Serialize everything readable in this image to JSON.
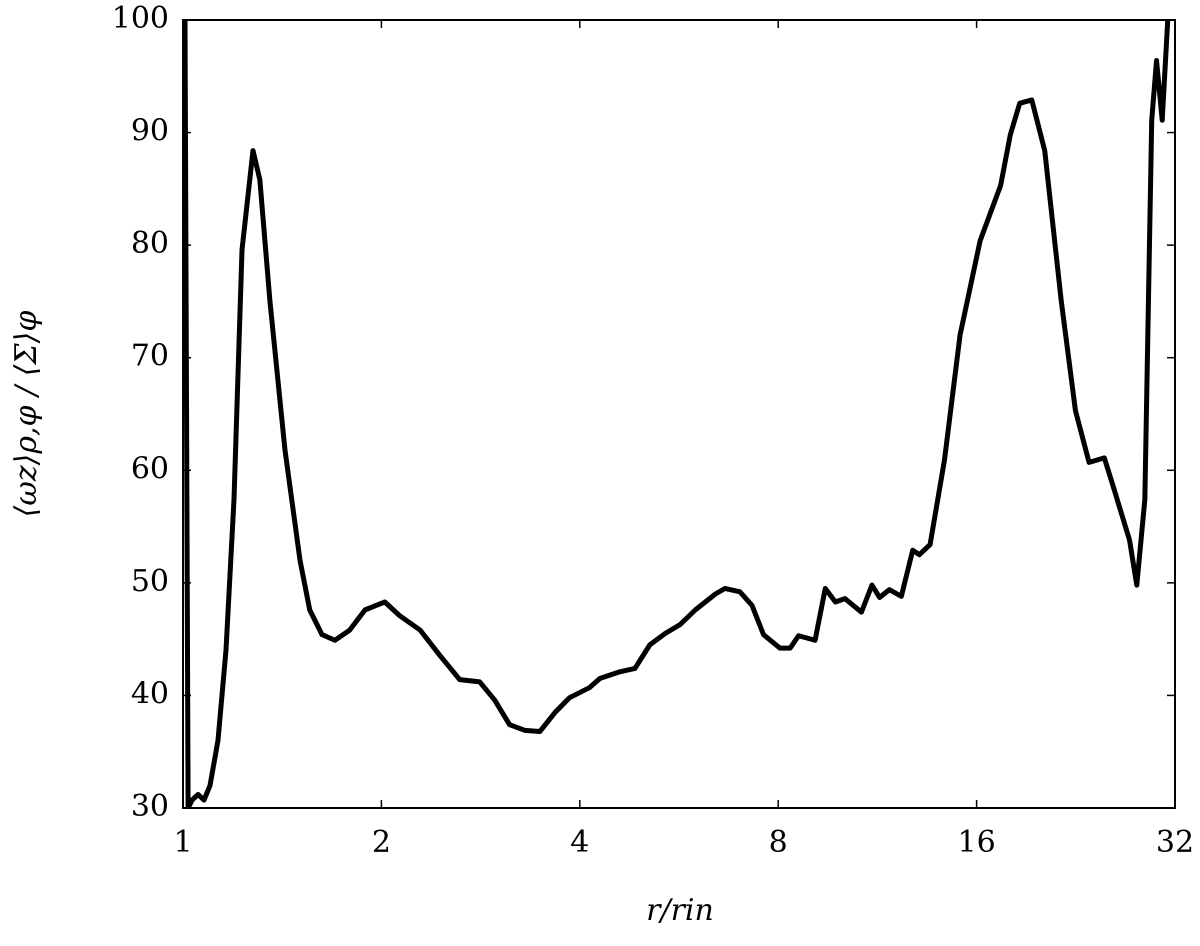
{
  "chart_data": {
    "type": "line",
    "xlabel": "r/rin",
    "ylabel": "⟨ωz⟩ρ,φ / ⟨Σ⟩φ",
    "xscale": "log",
    "xlim": [
      1,
      32
    ],
    "xticks": [
      1,
      2,
      4,
      8,
      16,
      32
    ],
    "ylim": [
      30,
      100
    ],
    "yticks": [
      30,
      40,
      50,
      60,
      70,
      80,
      90,
      100
    ],
    "series": [
      {
        "color": "#000000",
        "x": [
          1.007,
          1.018,
          1.032,
          1.054,
          1.076,
          1.099,
          1.13,
          1.162,
          1.195,
          1.229,
          1.277,
          1.308,
          1.355,
          1.428,
          1.505,
          1.557,
          1.625,
          1.7,
          1.79,
          1.889,
          2.024,
          2.13,
          2.29,
          2.45,
          2.63,
          2.82,
          2.97,
          3.13,
          3.3,
          3.48,
          3.67,
          3.86,
          4.14,
          4.29,
          4.6,
          4.85,
          5.11,
          5.39,
          5.68,
          5.99,
          6.42,
          6.64,
          7.0,
          7.3,
          7.6,
          8.05,
          8.34,
          8.59,
          9.1,
          9.43,
          9.77,
          10.1,
          10.7,
          11.1,
          11.4,
          11.8,
          12.3,
          12.8,
          13.1,
          13.6,
          14.3,
          15.1,
          16.2,
          17.4,
          18.0,
          18.6,
          19.4,
          20.3,
          21.5,
          22.6,
          23.7,
          25.0,
          25.9,
          27.3,
          28.0,
          28.8,
          29.5,
          30.0,
          30.6,
          31.2
        ],
        "values": [
          100,
          30,
          30.7,
          31.2,
          30.7,
          32,
          36,
          44,
          57.4,
          79.6,
          88.4,
          85.8,
          75,
          61.8,
          52,
          47.6,
          45.4,
          44.9,
          45.8,
          47.6,
          48.3,
          47.1,
          45.8,
          43.6,
          41.4,
          41.2,
          39.6,
          37.4,
          36.9,
          36.8,
          38.5,
          39.8,
          40.7,
          41.5,
          42.1,
          42.4,
          44.5,
          45.5,
          46.3,
          47.6,
          49,
          49.5,
          49.2,
          48,
          45.4,
          44.2,
          44.2,
          45.3,
          44.9,
          49.5,
          48.3,
          48.6,
          47.4,
          49.8,
          48.7,
          49.4,
          48.8,
          52.9,
          52.5,
          53.4,
          60.9,
          72,
          80.4,
          85.3,
          89.8,
          92.6,
          92.9,
          88.4,
          75.1,
          65.3,
          60.7,
          61.1,
          58.2,
          53.8,
          49.8,
          57.4,
          91.1,
          96.4,
          91.1,
          100
        ]
      }
    ]
  }
}
